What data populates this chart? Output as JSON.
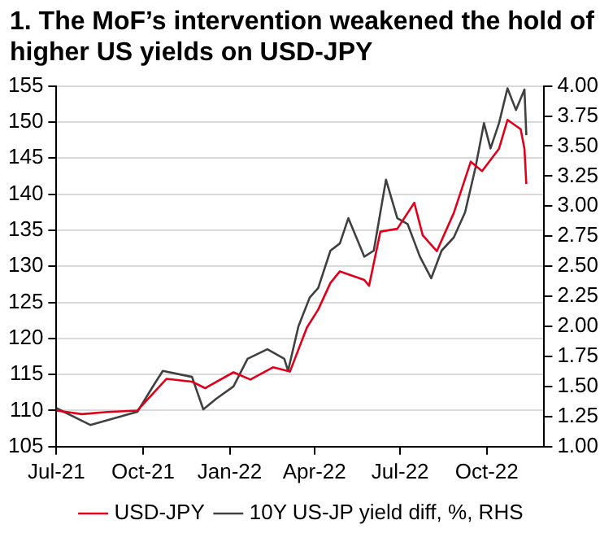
{
  "chart_data": {
    "type": "line",
    "title": "1. The MoF’s intervention weakened the hold of higher US yields on USD-JPY",
    "xlim": [
      "2021-07-01",
      "2022-12-01"
    ],
    "xticks": [
      {
        "value": "2021-07-01",
        "label": "Jul-21"
      },
      {
        "value": "2021-10-01",
        "label": "Oct-21"
      },
      {
        "value": "2022-01-01",
        "label": "Jan-22"
      },
      {
        "value": "2022-04-01",
        "label": "Apr-22"
      },
      {
        "value": "2022-07-01",
        "label": "Jul-22"
      },
      {
        "value": "2022-10-01",
        "label": "Oct-22"
      }
    ],
    "ylim": [
      105,
      155
    ],
    "yticks": [
      105,
      110,
      115,
      120,
      125,
      130,
      135,
      140,
      145,
      150,
      155
    ],
    "y2lim": [
      1,
      4
    ],
    "y2ticks": [
      {
        "value": 1,
        "label": "1.00"
      },
      {
        "value": 1.25,
        "label": "1.25"
      },
      {
        "value": 1.5,
        "label": "1.50"
      },
      {
        "value": 1.75,
        "label": "1.75"
      },
      {
        "value": 2,
        "label": "2.00"
      },
      {
        "value": 2.25,
        "label": "2.25"
      },
      {
        "value": 2.5,
        "label": "2.50"
      },
      {
        "value": 2.75,
        "label": "2.75"
      },
      {
        "value": 3,
        "label": "3.00"
      },
      {
        "value": 3.25,
        "label": "3.25"
      },
      {
        "value": 3.5,
        "label": "3.50"
      },
      {
        "value": 3.75,
        "label": "3.75"
      },
      {
        "value": 4,
        "label": "4.00"
      }
    ],
    "grid": "y",
    "legend": "bottom",
    "marker": "none",
    "line_style": "solid",
    "series": [
      {
        "name": "USD-JPY",
        "color": "#e0001b",
        "x": [
          "2021-07-01",
          "2021-07-28",
          "2021-08-24",
          "2021-09-25",
          "2021-10-26",
          "2021-11-22",
          "2021-12-06",
          "2022-01-05",
          "2022-01-23",
          "2022-02-16",
          "2022-03-06",
          "2022-03-24",
          "2022-04-05",
          "2022-04-18",
          "2022-04-28",
          "2022-05-24",
          "2022-05-29",
          "2022-06-10",
          "2022-06-28",
          "2022-07-16",
          "2022-07-25",
          "2022-08-09",
          "2022-08-27",
          "2022-09-14",
          "2022-09-26",
          "2022-10-14",
          "2022-10-23",
          "2022-11-06",
          "2022-11-10",
          "2022-11-12"
        ],
        "values": [
          110,
          109.5,
          109.8,
          110,
          114.4,
          114,
          113.1,
          115.3,
          114.3,
          116,
          115.4,
          121.5,
          124,
          127.7,
          129.3,
          128.1,
          127.3,
          134.8,
          135.2,
          138.8,
          134.3,
          132.1,
          137.4,
          144.5,
          143.2,
          146.3,
          150.3,
          149,
          146.3,
          141.4
        ]
      },
      {
        "name": "10Y US-JP yield diff, %, RHS",
        "color": "#404040",
        "axis": "y2",
        "x": [
          "2021-07-01",
          "2021-08-06",
          "2021-09-25",
          "2021-10-13",
          "2021-10-22",
          "2021-11-22",
          "2021-12-04",
          "2021-12-18",
          "2022-01-05",
          "2022-01-20",
          "2022-02-10",
          "2022-02-28",
          "2022-03-04",
          "2022-03-15",
          "2022-03-27",
          "2022-04-05",
          "2022-04-18",
          "2022-04-28",
          "2022-05-07",
          "2022-05-24",
          "2022-06-03",
          "2022-06-16",
          "2022-06-28",
          "2022-07-09",
          "2022-07-22",
          "2022-08-03",
          "2022-08-14",
          "2022-08-27",
          "2022-09-08",
          "2022-09-19",
          "2022-09-28",
          "2022-10-05",
          "2022-10-14",
          "2022-10-23",
          "2022-11-01",
          "2022-11-10",
          "2022-11-12"
        ],
        "values": [
          1.32,
          1.18,
          1.29,
          1.52,
          1.63,
          1.58,
          1.31,
          1.4,
          1.5,
          1.73,
          1.81,
          1.73,
          1.63,
          2.0,
          2.24,
          2.32,
          2.63,
          2.69,
          2.9,
          2.58,
          2.63,
          3.22,
          2.9,
          2.85,
          2.58,
          2.4,
          2.63,
          2.74,
          2.95,
          3.32,
          3.69,
          3.48,
          3.69,
          3.98,
          3.8,
          3.97,
          3.59
        ]
      }
    ]
  }
}
